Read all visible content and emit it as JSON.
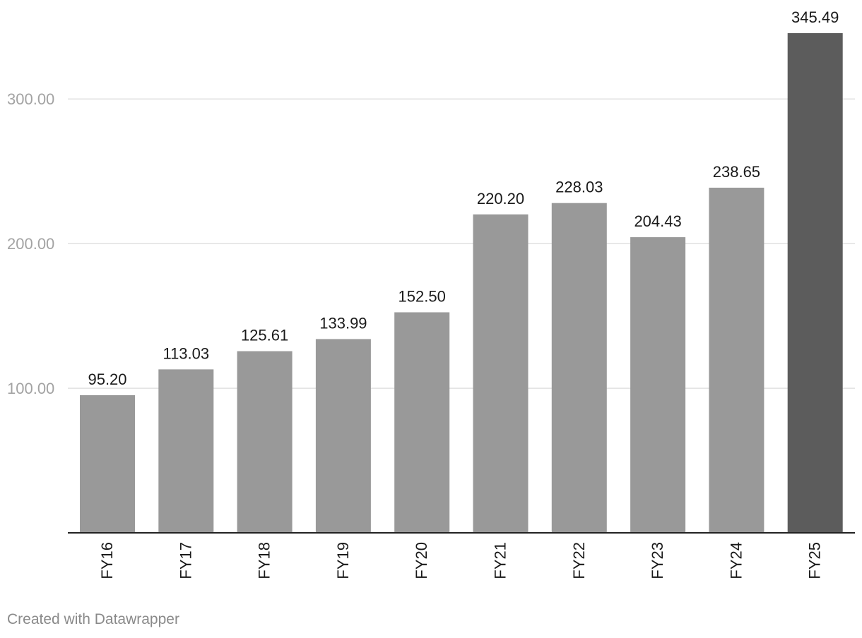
{
  "chart_data": {
    "type": "bar",
    "categories": [
      "FY16",
      "FY17",
      "FY18",
      "FY19",
      "FY20",
      "FY21",
      "FY22",
      "FY23",
      "FY24",
      "FY25"
    ],
    "values": [
      95.2,
      113.03,
      125.61,
      133.99,
      152.5,
      220.2,
      228.03,
      204.43,
      238.65,
      345.49
    ],
    "value_labels": [
      "95.20",
      "113.03",
      "125.61",
      "133.99",
      "152.50",
      "220.20",
      "228.03",
      "204.43",
      "238.65",
      "345.49"
    ],
    "y_ticks": [
      {
        "value": 100,
        "label": "100.00"
      },
      {
        "value": 200,
        "label": "200.00"
      },
      {
        "value": 300,
        "label": "300.00"
      }
    ],
    "ylim": [
      0,
      345.49
    ],
    "grid": true,
    "highlight_index": 9,
    "colors": {
      "bar": "#999999",
      "highlight_bar": "#5c5c5c",
      "gridline": "#e0e0e0",
      "axis_line": "#222222",
      "tick_label": "#a3a3a3",
      "value_label": "#1a1a1a",
      "category_label": "#1a1a1a"
    },
    "title": "",
    "xlabel": "",
    "ylabel": ""
  },
  "footer": {
    "credit": "Created with Datawrapper"
  }
}
